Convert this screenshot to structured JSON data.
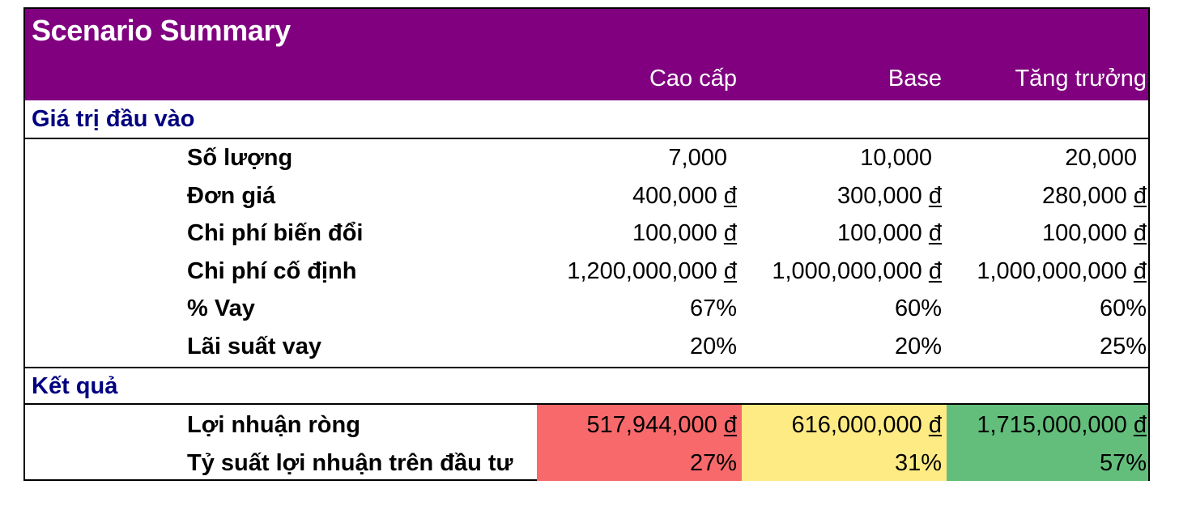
{
  "title": "Scenario Summary",
  "columns": [
    "Cao cấp",
    "Base",
    "Tăng trưởng"
  ],
  "sections": {
    "inputs": "Giá trị đầu vào",
    "results": "Kết quả"
  },
  "currency_symbol": "đ",
  "input_rows": [
    {
      "label": "Số lượng",
      "values": [
        "7,000",
        "10,000",
        "20,000"
      ],
      "currency": false
    },
    {
      "label": "Đơn giá",
      "values": [
        "400,000",
        "300,000",
        "280,000"
      ],
      "currency": true
    },
    {
      "label": "Chi phí biến đổi",
      "values": [
        "100,000",
        "100,000",
        "100,000"
      ],
      "currency": true
    },
    {
      "label": "Chi phí cố định",
      "values": [
        "1,200,000,000",
        "1,000,000,000",
        "1,000,000,000"
      ],
      "currency": true
    },
    {
      "label": "% Vay",
      "values": [
        "67%",
        "60%",
        "60%"
      ],
      "currency": false
    },
    {
      "label": "Lãi suất vay",
      "values": [
        "20%",
        "20%",
        "25%"
      ],
      "currency": false
    }
  ],
  "result_rows": [
    {
      "label": "Lợi nhuận ròng",
      "values": [
        "517,944,000",
        "616,000,000",
        "1,715,000,000"
      ],
      "currency": true
    },
    {
      "label": "Tỷ suất lợi nhuận trên đầu tư",
      "values": [
        "27%",
        "31%",
        "57%"
      ],
      "currency": false
    }
  ],
  "colors": {
    "header_bg": "#800080",
    "section_text": "#000080",
    "result_fills": [
      "#F8696B",
      "#FFEB84",
      "#63BE7B"
    ]
  }
}
